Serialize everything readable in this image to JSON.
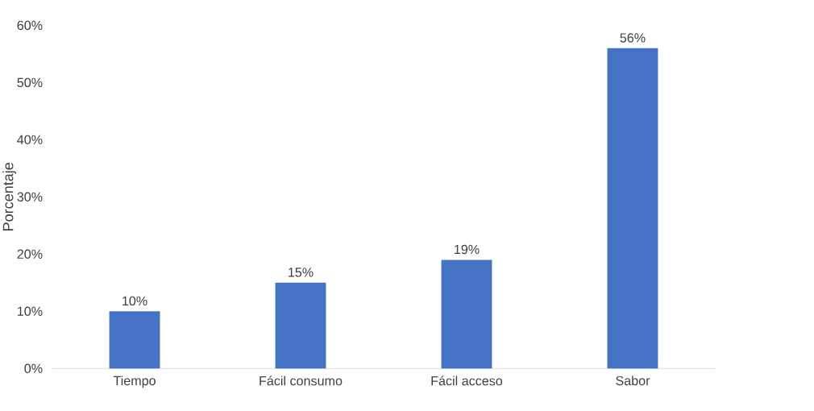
{
  "chart_data": {
    "type": "bar",
    "ylabel": "Porcentaje",
    "categories": [
      "Tiempo",
      "Fácil consumo",
      "Fácil acceso",
      "Sabor"
    ],
    "values": [
      10,
      15,
      19,
      56
    ],
    "color": "#4472c4",
    "value_labels": [
      "10%",
      "15%",
      "19%",
      "56%"
    ],
    "ylim": [
      0,
      60
    ],
    "yticks": [
      {
        "value": 0,
        "label": "0%"
      },
      {
        "value": 10,
        "label": "10%"
      },
      {
        "value": 20,
        "label": "20%"
      },
      {
        "value": 30,
        "label": "30%"
      },
      {
        "value": 40,
        "label": "40%"
      },
      {
        "value": 50,
        "label": "50%"
      },
      {
        "value": 60,
        "label": "60%"
      }
    ],
    "grid": false
  }
}
